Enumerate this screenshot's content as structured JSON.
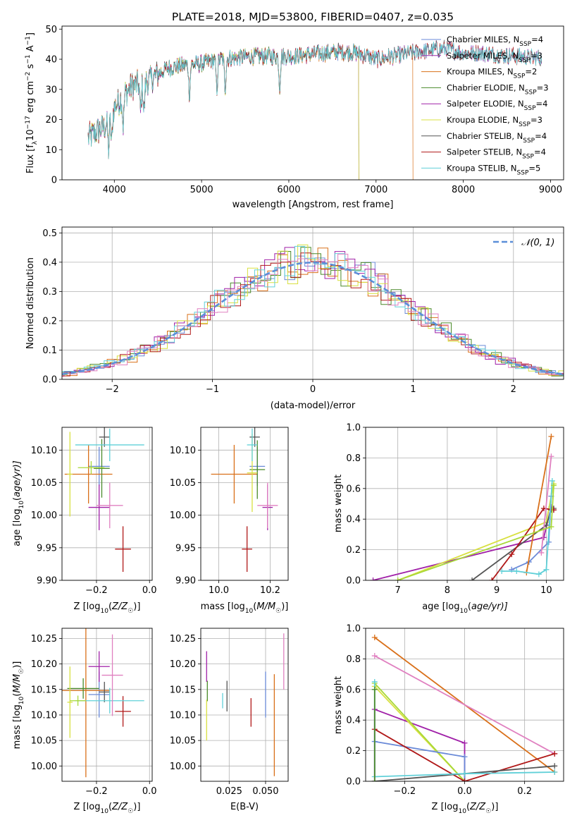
{
  "figure_title": "PLATE=2018, MJD=53800, FIBERID=0407, z=0.035",
  "colors": {
    "Chabrier MILES": "#6a8ad8",
    "Salpeter MILES": "#9b2fae",
    "Kroupa MILES": "#d9701a",
    "Chabrier ELODIE": "#4a8a2a",
    "Salpeter ELODIE": "#a020a8",
    "Kroupa ELODIE": "#d8e040",
    "Chabrier STELIB": "#555555",
    "Salpeter STELIB": "#b01818",
    "Kroupa STELIB": "#60d0d8",
    "pink": "#e080c0",
    "lime": "#a8d838",
    "normal": "#5b8fd8"
  },
  "chart_data": [
    {
      "id": "spectrum",
      "type": "line",
      "title": "PLATE=2018, MJD=53800, FIBERID=0407, z=0.035",
      "xlabel": "wavelength [Angstrom, rest frame]",
      "ylabel_parts": {
        "a": "Flux [f",
        "sub": "λ",
        "b": "10",
        "exp": "−17",
        "c": " erg cm",
        "exp2": "−2",
        "d": " s",
        "exp3": "−1",
        "e": " A",
        "exp4": "−1",
        "f": "]"
      },
      "xlim": [
        3400,
        9150
      ],
      "ylim": [
        0,
        51
      ],
      "xticks": [
        4000,
        5000,
        6000,
        7000,
        8000,
        9000
      ],
      "yticks": [
        0,
        10,
        20,
        30,
        40,
        50
      ],
      "continuum": {
        "x": [
          3700,
          3800,
          3900,
          4000,
          4100,
          4200,
          4300,
          4400,
          4500,
          4600,
          4800,
          5000,
          5200,
          5400,
          5600,
          5800,
          6000,
          6200,
          6400,
          6600,
          6800,
          7000,
          7200,
          7400,
          7600,
          7800,
          8000,
          8200,
          8400,
          8600,
          8800
        ],
        "y": [
          14,
          16,
          18,
          24,
          28,
          31,
          32,
          33,
          35,
          37,
          38,
          38.5,
          40,
          40.5,
          41,
          41,
          41,
          41.5,
          42,
          42.5,
          42,
          40,
          41,
          42,
          43,
          43.5,
          42,
          42,
          41.5,
          41,
          40.5
        ]
      },
      "absorption_lines": [
        3934,
        3969,
        4102,
        4300,
        4340,
        4861,
        5175,
        5270,
        5895
      ],
      "series": [
        {
          "name_a": "Chabrier MILES, N",
          "name_sub": "SSP",
          "name_b": "=4",
          "color_key": "Chabrier MILES",
          "end": 8900
        },
        {
          "name_a": "Salpeter MILES, N",
          "name_sub": "SSP",
          "name_b": "=3",
          "color_key": "Salpeter MILES",
          "end": 8900
        },
        {
          "name_a": "Kroupa MILES, N",
          "name_sub": "SSP",
          "name_b": "=2",
          "color_key": "Kroupa MILES",
          "end": 7420
        },
        {
          "name_a": "Chabrier ELODIE, N",
          "name_sub": "SSP",
          "name_b": "=3",
          "color_key": "Chabrier ELODIE",
          "end": 6800
        },
        {
          "name_a": "Salpeter ELODIE, N",
          "name_sub": "SSP",
          "name_b": "=4",
          "color_key": "Salpeter ELODIE",
          "end": 6800
        },
        {
          "name_a": "Kroupa ELODIE, N",
          "name_sub": "SSP",
          "name_b": "=3",
          "color_key": "Kroupa ELODIE",
          "end": 6800
        },
        {
          "name_a": "Chabrier STELIB, N",
          "name_sub": "SSP",
          "name_b": "=4",
          "color_key": "Chabrier STELIB",
          "end": 8900
        },
        {
          "name_a": "Salpeter STELIB, N",
          "name_sub": "SSP",
          "name_b": "=4",
          "color_key": "Salpeter STELIB",
          "end": 8900
        },
        {
          "name_a": "Kroupa STELIB, N",
          "name_sub": "SSP",
          "name_b": "=5",
          "color_key": "Kroupa STELIB",
          "end": 8900
        }
      ]
    },
    {
      "id": "residuals",
      "type": "histogram",
      "xlabel": "(data-model)/error",
      "ylabel": "Normed distribution",
      "xlim": [
        -2.5,
        2.5
      ],
      "ylim": [
        0,
        0.52
      ],
      "xticks": [
        -2,
        -1,
        0,
        1,
        2
      ],
      "yticks": [
        0.0,
        0.1,
        0.2,
        0.3,
        0.4,
        0.5
      ],
      "grid": true,
      "bin_width": 0.1,
      "legend": {
        "label": "𝒩(0, 1)",
        "placement": "top-right"
      },
      "hist_color_keys": [
        "Chabrier MILES",
        "Kroupa MILES",
        "Chabrier ELODIE",
        "Salpeter ELODIE",
        "Kroupa ELODIE",
        "Salpeter STELIB",
        "Kroupa STELIB",
        "pink"
      ]
    },
    {
      "id": "age_vs_Z",
      "type": "errorbar",
      "xlabel_main": "Z [log",
      "xlabel_sub": "10",
      "xlabel_rest": "(Z/Z",
      "xlabel_sun": "☉",
      "xlabel_end": ")]",
      "ylabel_main": "age  [log",
      "ylabel_sub": "10",
      "ylabel_rest": "(age/yr)]",
      "xlim": [
        -0.33,
        0.01
      ],
      "ylim": [
        9.9,
        10.135
      ],
      "xticks": [
        -0.2,
        0.0
      ],
      "yticks": [
        9.9,
        9.95,
        10.0,
        10.05,
        10.1
      ],
      "points": [
        {
          "x": -0.19,
          "xerr": 0.04,
          "y": 10.075,
          "yerr": 0.03,
          "color_key": "Chabrier MILES"
        },
        {
          "x": -0.23,
          "xerr": 0.09,
          "y": 10.063,
          "yerr": 0.045,
          "color_key": "Kroupa MILES"
        },
        {
          "x": -0.18,
          "xerr": 0.03,
          "y": 10.072,
          "yerr": 0.045,
          "color_key": "Chabrier ELODIE"
        },
        {
          "x": -0.19,
          "xerr": 0.04,
          "y": 10.012,
          "yerr": 0.035,
          "color_key": "Salpeter ELODIE"
        },
        {
          "x": -0.3,
          "xerr": 0.01,
          "y": 10.063,
          "yerr": 0.065,
          "color_key": "Kroupa ELODIE"
        },
        {
          "x": -0.17,
          "xerr": 0.02,
          "y": 10.12,
          "yerr": 0.015,
          "color_key": "Chabrier STELIB"
        },
        {
          "x": -0.1,
          "xerr": 0.03,
          "y": 9.948,
          "yerr": 0.035,
          "color_key": "Salpeter STELIB"
        },
        {
          "x": -0.15,
          "xerr": 0.13,
          "y": 10.108,
          "yerr": 0.025,
          "color_key": "Kroupa STELIB"
        },
        {
          "x": -0.15,
          "xerr": 0.05,
          "y": 10.015,
          "yerr": 0.035,
          "color_key": "pink"
        },
        {
          "x": -0.22,
          "xerr": 0.05,
          "y": 10.073,
          "yerr": 0.01,
          "color_key": "lime"
        }
      ]
    },
    {
      "id": "age_vs_mass",
      "type": "errorbar",
      "xlabel_main": "mass [log",
      "xlabel_sub": "10",
      "xlabel_rest": "(M/M",
      "xlabel_sun": "☉",
      "xlabel_end": ")]",
      "xlim": [
        9.93,
        10.27
      ],
      "ylim": [
        9.9,
        10.135
      ],
      "xticks": [
        10.0,
        10.2
      ],
      "yticks": [
        9.9,
        9.95,
        10.0,
        10.05,
        10.1
      ],
      "points": [
        {
          "x": 10.15,
          "xerr": 0.03,
          "y": 10.075,
          "yerr": 0.03,
          "color_key": "Chabrier MILES"
        },
        {
          "x": 10.06,
          "xerr": 0.09,
          "y": 10.063,
          "yerr": 0.045,
          "color_key": "Kroupa MILES"
        },
        {
          "x": 10.15,
          "xerr": 0.03,
          "y": 10.07,
          "yerr": 0.045,
          "color_key": "Chabrier ELODIE"
        },
        {
          "x": 10.19,
          "xerr": 0.02,
          "y": 10.012,
          "yerr": 0.035,
          "color_key": "Salpeter ELODIE"
        },
        {
          "x": 10.13,
          "xerr": 0.02,
          "y": 10.065,
          "yerr": 0.06,
          "color_key": "Kroupa ELODIE"
        },
        {
          "x": 10.14,
          "xerr": 0.02,
          "y": 10.12,
          "yerr": 0.015,
          "color_key": "Chabrier STELIB"
        },
        {
          "x": 10.11,
          "xerr": 0.02,
          "y": 9.948,
          "yerr": 0.035,
          "color_key": "Salpeter STELIB"
        },
        {
          "x": 10.13,
          "xerr": 0.02,
          "y": 10.108,
          "yerr": 0.025,
          "color_key": "Kroupa STELIB"
        },
        {
          "x": 10.19,
          "xerr": 0.04,
          "y": 10.015,
          "yerr": 0.035,
          "color_key": "pink"
        }
      ]
    },
    {
      "id": "weight_vs_age",
      "type": "line",
      "xlabel_main": "age  [log",
      "xlabel_sub": "10",
      "xlabel_rest": "(age/yr)]",
      "ylabel": "mass weight",
      "xlim": [
        6.35,
        10.35
      ],
      "ylim": [
        0,
        1.0
      ],
      "xticks": [
        7,
        8,
        9,
        10
      ],
      "yticks": [
        0.0,
        0.2,
        0.4,
        0.6,
        0.8,
        1.0
      ],
      "grid": true,
      "series": [
        {
          "color_key": "Salpeter ELODIE",
          "x": [
            6.5,
            9.95,
            10.1,
            10.15
          ],
          "y": [
            0.0,
            0.28,
            0.48,
            0.46
          ]
        },
        {
          "color_key": "Kroupa ELODIE",
          "x": [
            7.0,
            10.0,
            10.1,
            10.15
          ],
          "y": [
            0.0,
            0.38,
            0.55,
            0.63
          ]
        },
        {
          "color_key": "Chabrier STELIB",
          "x": [
            8.5,
            10.0,
            10.1,
            10.15
          ],
          "y": [
            0.0,
            0.36,
            0.46,
            0.47
          ]
        },
        {
          "color_key": "Salpeter STELIB",
          "x": [
            8.9,
            9.3,
            9.95,
            10.15
          ],
          "y": [
            0.0,
            0.17,
            0.47,
            0.46
          ]
        },
        {
          "color_key": "Chabrier MILES",
          "x": [
            9.3,
            9.65,
            10.05,
            10.1
          ],
          "y": [
            0.07,
            0.12,
            0.25,
            0.55
          ]
        },
        {
          "color_key": "Kroupa MILES",
          "x": [
            9.6,
            10.1
          ],
          "y": [
            0.05,
            0.94
          ]
        },
        {
          "color_key": "pink",
          "x": [
            9.9,
            10.1
          ],
          "y": [
            0.18,
            0.81
          ]
        },
        {
          "color_key": "Kroupa STELIB",
          "x": [
            9.1,
            9.4,
            9.85,
            10.0,
            10.12
          ],
          "y": [
            0.06,
            0.06,
            0.04,
            0.07,
            0.65
          ]
        },
        {
          "color_key": "lime",
          "x": [
            7.0,
            10.1,
            10.15
          ],
          "y": [
            0.0,
            0.35,
            0.62
          ]
        }
      ]
    },
    {
      "id": "mass_vs_Z",
      "type": "errorbar",
      "xlabel_main": "Z [log",
      "xlabel_sub": "10",
      "xlabel_rest": "(Z/Z",
      "xlabel_sun": "☉",
      "xlabel_end": ")]",
      "ylabel_main": "mass [log",
      "ylabel_sub": "10",
      "ylabel_rest": "(M/M",
      "ylabel_sun": "☉",
      "ylabel_end": ")]",
      "xlim": [
        -0.33,
        0.01
      ],
      "ylim": [
        9.97,
        10.27
      ],
      "xticks": [
        -0.2,
        0.0
      ],
      "yticks": [
        10.0,
        10.05,
        10.1,
        10.15,
        10.2,
        10.25
      ],
      "points": [
        {
          "x": -0.19,
          "xerr": 0.04,
          "y": 10.14,
          "yerr": 0.045,
          "color_key": "Chabrier MILES"
        },
        {
          "x": -0.24,
          "xerr": 0.09,
          "y": 10.148,
          "yerr": 0.17,
          "color_key": "Kroupa MILES"
        },
        {
          "x": -0.25,
          "xerr": 0.06,
          "y": 10.152,
          "yerr": 0.02,
          "color_key": "Chabrier ELODIE"
        },
        {
          "x": -0.19,
          "xerr": 0.04,
          "y": 10.195,
          "yerr": 0.03,
          "color_key": "Salpeter ELODIE"
        },
        {
          "x": -0.3,
          "xerr": 0.01,
          "y": 10.125,
          "yerr": 0.07,
          "color_key": "Kroupa ELODIE"
        },
        {
          "x": -0.17,
          "xerr": 0.02,
          "y": 10.145,
          "yerr": 0.02,
          "color_key": "Chabrier STELIB"
        },
        {
          "x": -0.1,
          "xerr": 0.03,
          "y": 10.107,
          "yerr": 0.03,
          "color_key": "Salpeter STELIB"
        },
        {
          "x": -0.15,
          "xerr": 0.13,
          "y": 10.128,
          "yerr": 0.025,
          "color_key": "Kroupa STELIB"
        },
        {
          "x": -0.14,
          "xerr": 0.04,
          "y": 10.178,
          "yerr": 0.08,
          "color_key": "pink"
        },
        {
          "x": -0.27,
          "xerr": 0.03,
          "y": 10.128,
          "yerr": 0.01,
          "color_key": "lime"
        }
      ]
    },
    {
      "id": "mass_vs_ebv",
      "type": "errorbar",
      "xlabel": "E(B-V)",
      "xlim": [
        0.0055,
        0.0655
      ],
      "ylim": [
        9.97,
        10.27
      ],
      "xticks": [
        0.025,
        0.05
      ],
      "yticks": [
        10.0,
        10.05,
        10.1,
        10.15,
        10.2,
        10.25
      ],
      "points": [
        {
          "x": 0.05,
          "y": 10.14,
          "yerr": 0.045,
          "color_key": "Chabrier MILES"
        },
        {
          "x": 0.056,
          "y": 10.08,
          "yerr": 0.1,
          "color_key": "Kroupa MILES"
        },
        {
          "x": 0.01,
          "y": 10.147,
          "yerr": 0.02,
          "color_key": "Chabrier ELODIE"
        },
        {
          "x": 0.0095,
          "y": 10.195,
          "yerr": 0.03,
          "color_key": "Salpeter ELODIE"
        },
        {
          "x": 0.0095,
          "y": 10.09,
          "yerr": 0.04,
          "color_key": "Kroupa ELODIE"
        },
        {
          "x": 0.0235,
          "y": 10.137,
          "yerr": 0.03,
          "color_key": "Chabrier STELIB"
        },
        {
          "x": 0.04,
          "y": 10.105,
          "yerr": 0.028,
          "color_key": "Salpeter STELIB"
        },
        {
          "x": 0.0205,
          "y": 10.128,
          "yerr": 0.015,
          "color_key": "Kroupa STELIB"
        },
        {
          "x": 0.0625,
          "y": 10.205,
          "yerr": 0.055,
          "color_key": "pink"
        }
      ]
    },
    {
      "id": "weight_vs_Z",
      "type": "line",
      "xlabel_main": "Z [log",
      "xlabel_sub": "10",
      "xlabel_rest": "(Z/Z",
      "xlabel_sun": "☉",
      "xlabel_end": ")]",
      "ylabel": "mass weight",
      "xlim": [
        -0.33,
        0.33
      ],
      "ylim": [
        0,
        1.0
      ],
      "xticks": [
        -0.2,
        0.0,
        0.2
      ],
      "yticks": [
        0.0,
        0.2,
        0.4,
        0.6,
        0.8,
        1.0
      ],
      "grid": true,
      "series": [
        {
          "color_key": "Kroupa MILES",
          "x": [
            -0.3,
            0.3
          ],
          "y": [
            0.94,
            0.06
          ]
        },
        {
          "color_key": "pink",
          "x": [
            -0.3,
            0.3
          ],
          "y": [
            0.82,
            0.18
          ]
        },
        {
          "color_key": "Salpeter ELODIE",
          "x": [
            -0.3,
            -0.3,
            0.0,
            0.0
          ],
          "y": [
            0.0,
            0.47,
            0.25,
            0.0
          ]
        },
        {
          "color_key": "Kroupa ELODIE",
          "x": [
            -0.3,
            0.0
          ],
          "y": [
            0.62,
            0.0
          ]
        },
        {
          "color_key": "lime",
          "x": [
            -0.3,
            0.0
          ],
          "y": [
            0.64,
            0.0
          ]
        },
        {
          "color_key": "Chabrier MILES",
          "x": [
            -0.3,
            0.0,
            0.0
          ],
          "y": [
            0.26,
            0.16,
            0.0
          ]
        },
        {
          "color_key": "Salpeter STELIB",
          "x": [
            -0.3,
            0.0,
            0.3
          ],
          "y": [
            0.34,
            0.0,
            0.18
          ]
        },
        {
          "color_key": "Chabrier STELIB",
          "x": [
            -0.3,
            0.0,
            0.3
          ],
          "y": [
            0.0,
            0.05,
            0.1
          ]
        },
        {
          "color_key": "Kroupa STELIB",
          "x": [
            -0.3,
            -0.3,
            0.0,
            0.3
          ],
          "y": [
            0.65,
            0.03,
            0.05,
            0.06
          ]
        },
        {
          "color_key": "Chabrier ELODIE",
          "x": [
            -0.3,
            -0.3
          ],
          "y": [
            0.0,
            0.6
          ]
        }
      ]
    }
  ]
}
